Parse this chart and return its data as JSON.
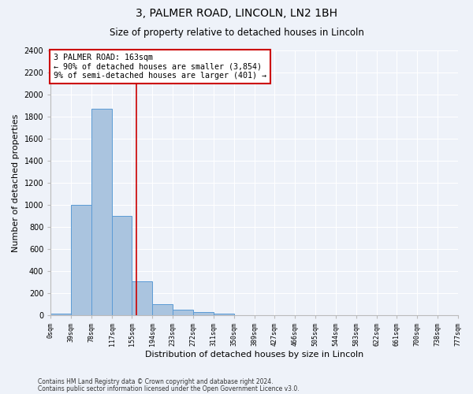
{
  "title_line1": "3, PALMER ROAD, LINCOLN, LN2 1BH",
  "title_line2": "Size of property relative to detached houses in Lincoln",
  "xlabel": "Distribution of detached houses by size in Lincoln",
  "ylabel": "Number of detached properties",
  "bin_edges": [
    0,
    39,
    78,
    117,
    155,
    194,
    233,
    272,
    311,
    350,
    389,
    427,
    466,
    505,
    544,
    583,
    622,
    661,
    700,
    738,
    777
  ],
  "bar_values": [
    20,
    1005,
    1870,
    900,
    310,
    105,
    50,
    35,
    20,
    0,
    0,
    0,
    0,
    0,
    0,
    0,
    0,
    0,
    0,
    0
  ],
  "bar_color": "#aac4df",
  "bar_edge_color": "#5b9bd5",
  "property_size": 163,
  "property_label": "3 PALMER ROAD: 163sqm",
  "annotation_line2": "← 90% of detached houses are smaller (3,854)",
  "annotation_line3": "9% of semi-detached houses are larger (401) →",
  "red_line_color": "#cc0000",
  "annotation_box_color": "#cc0000",
  "ylim": [
    0,
    2400
  ],
  "yticks": [
    0,
    200,
    400,
    600,
    800,
    1000,
    1200,
    1400,
    1600,
    1800,
    2000,
    2200,
    2400
  ],
  "footnote1": "Contains HM Land Registry data © Crown copyright and database right 2024.",
  "footnote2": "Contains public sector information licensed under the Open Government Licence v3.0.",
  "bg_color": "#eef2f9",
  "plot_bg_color": "#eef2f9"
}
